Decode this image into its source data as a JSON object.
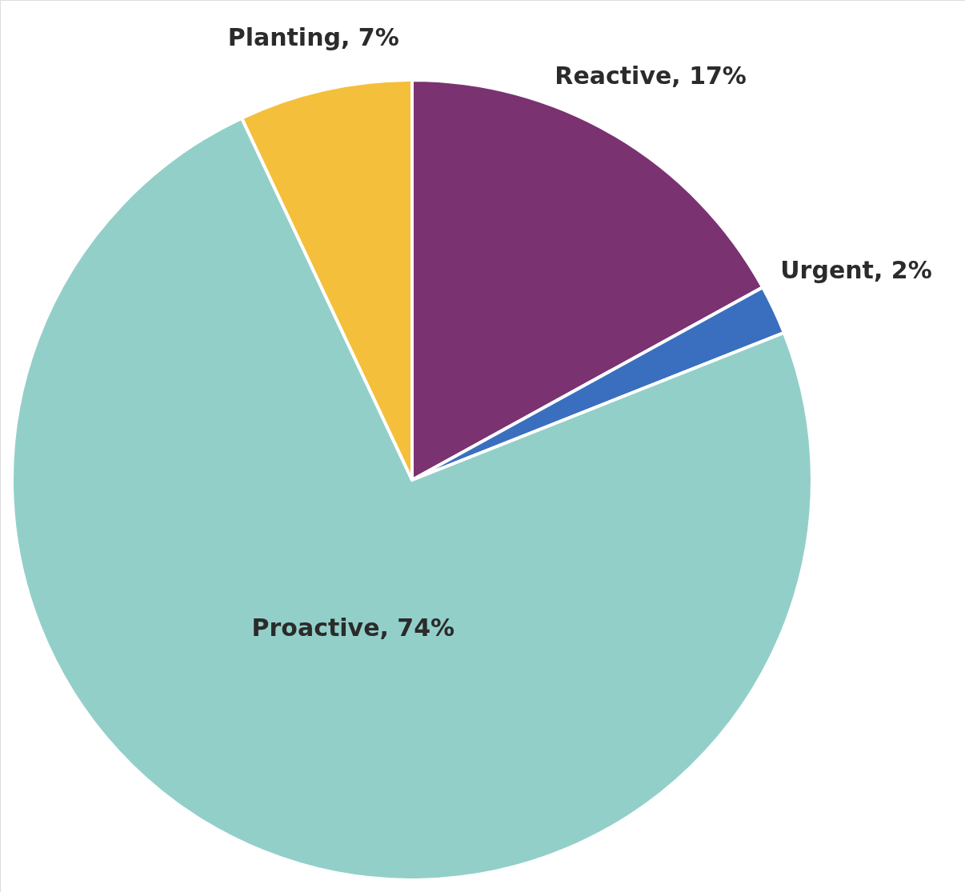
{
  "chart_data": {
    "type": "pie",
    "categories": [
      "Reactive",
      "Urgent",
      "Proactive",
      "Planting"
    ],
    "values": [
      17,
      2,
      74,
      7
    ],
    "value_labels": [
      "17%",
      "2%",
      "74%",
      "7%"
    ],
    "colors": [
      "#7b3271",
      "#3a6fbf",
      "#93cfc9",
      "#f4bf3a"
    ]
  }
}
